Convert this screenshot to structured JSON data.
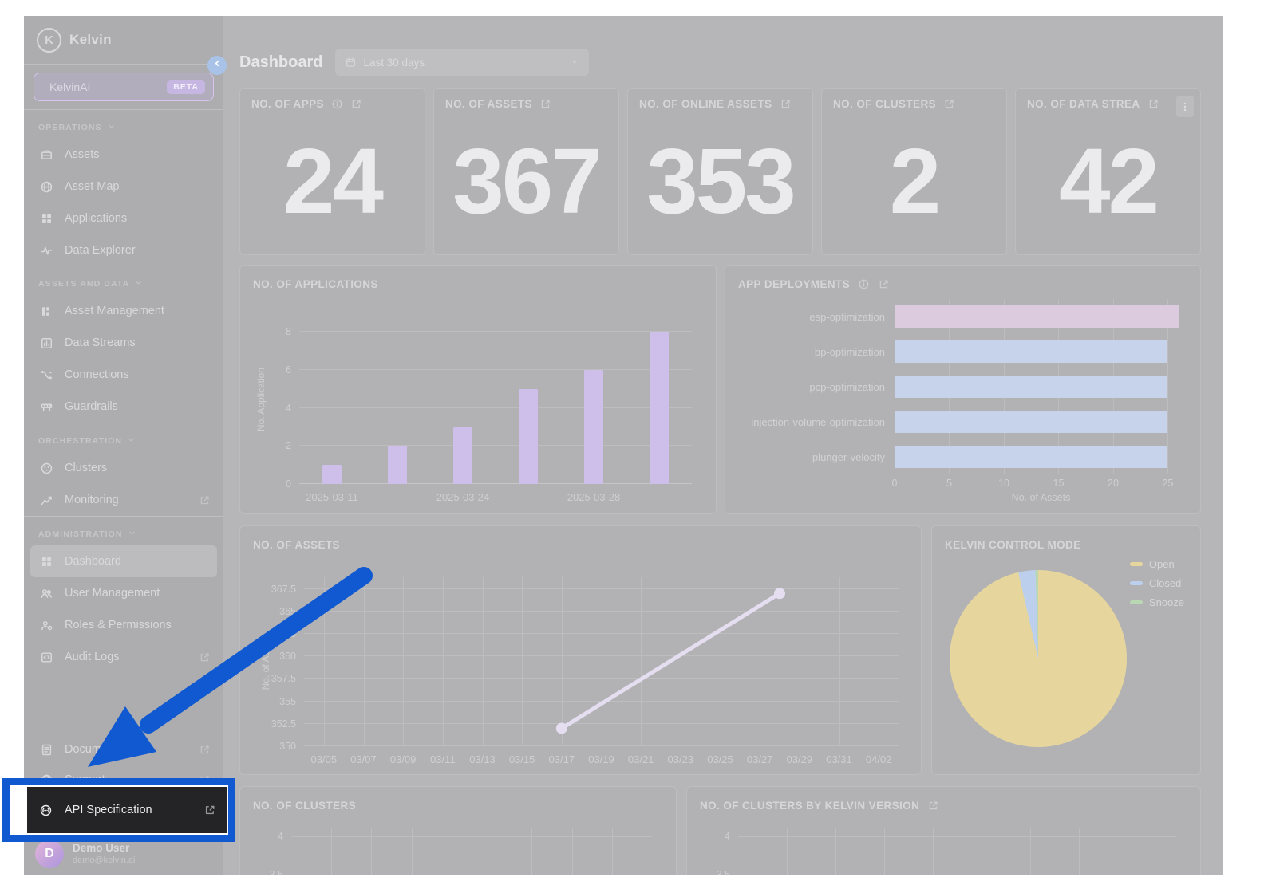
{
  "brand": "Kelvin",
  "annotation": {
    "color": "#1159d1",
    "target": "API Specification"
  },
  "sidebar": {
    "kelvin_ai": {
      "label": "KelvinAI",
      "badge": "BETA"
    },
    "sections": [
      {
        "title": "OPERATIONS",
        "items": [
          {
            "label": "Assets",
            "icon": "suitcase"
          },
          {
            "label": "Asset Map",
            "icon": "globe"
          },
          {
            "label": "Applications",
            "icon": "grid"
          },
          {
            "label": "Data Explorer",
            "icon": "pulse"
          }
        ]
      },
      {
        "title": "ASSETS AND DATA",
        "items": [
          {
            "label": "Asset Management",
            "icon": "boxes"
          },
          {
            "label": "Data Streams",
            "icon": "chart-box"
          },
          {
            "label": "Connections",
            "icon": "route"
          },
          {
            "label": "Guardrails",
            "icon": "barrier"
          }
        ]
      },
      {
        "title": "ORCHESTRATION",
        "divider_before": true,
        "items": [
          {
            "label": "Clusters",
            "icon": "cluster"
          },
          {
            "label": "Monitoring",
            "icon": "trend",
            "external": true
          }
        ]
      },
      {
        "title": "ADMINISTRATION",
        "divider_before": true,
        "items": [
          {
            "label": "Dashboard",
            "icon": "grid",
            "active": true
          },
          {
            "label": "User Management",
            "icon": "users"
          },
          {
            "label": "Roles & Permissions",
            "icon": "user-gear"
          },
          {
            "label": "Audit Logs",
            "icon": "code-box",
            "external": true
          }
        ]
      }
    ],
    "footer_items": [
      {
        "label": "Documentation",
        "icon": "document",
        "external": true
      },
      {
        "label": "Support",
        "icon": "globe",
        "external": true
      }
    ],
    "api_item": {
      "label": "API Specification",
      "icon": "api",
      "external": true
    },
    "user": {
      "name": "Demo User",
      "email": "demo@kelvin.ai",
      "initial": "D"
    }
  },
  "header": {
    "title": "Dashboard",
    "date_range": "Last 30 days"
  },
  "stat_cards": [
    {
      "title": "NO. OF APPS",
      "value": "24",
      "info": true,
      "external": true
    },
    {
      "title": "NO. OF ASSETS",
      "value": "367",
      "external": true
    },
    {
      "title": "NO. OF ONLINE ASSETS",
      "value": "353",
      "external": true
    },
    {
      "title": "NO. OF CLUSTERS",
      "value": "2",
      "external": true
    },
    {
      "title": "NO. OF DATA STREA",
      "value": "42",
      "external": true,
      "menu": true
    }
  ],
  "chart_data": [
    {
      "id": "applications_over_time",
      "type": "bar",
      "title": "NO. OF APPLICATIONS",
      "ylabel": "No. Application",
      "yticks": [
        8,
        6,
        4,
        2,
        0
      ],
      "ylim": [
        0,
        8.9
      ],
      "values": [
        1,
        2,
        3,
        5,
        6,
        8
      ],
      "x_labels": [
        {
          "text": "2025-03-11",
          "slot": 0
        },
        {
          "text": "2025-03-24",
          "slot": 2
        },
        {
          "text": "2025-03-28",
          "slot": 4
        }
      ],
      "bar_color": "#cdbfe9"
    },
    {
      "id": "app_deployments",
      "type": "hbar",
      "title": "APP DEPLOYMENTS",
      "has_info": true,
      "has_external": true,
      "xlabel": "No. of Assets",
      "xticks": [
        0,
        5,
        10,
        15,
        20,
        25
      ],
      "xlim": [
        0,
        26.5
      ],
      "categories": [
        "esp-optimization",
        "bp-optimization",
        "pcp-optimization",
        "injection-volume-optimization",
        "plunger-velocity"
      ],
      "values": [
        26,
        25,
        25,
        25,
        25
      ],
      "bar_colors": [
        "#dccbdf",
        "#c6d3eb",
        "#c6d3eb",
        "#c6d3eb",
        "#c6d3eb"
      ]
    },
    {
      "id": "assets_over_time",
      "type": "line",
      "title": "NO. OF ASSETS",
      "ylabel": "No. of Assets",
      "yticks": [
        367.5,
        365,
        362.5,
        360,
        357.5,
        355,
        352.5,
        350
      ],
      "ylim": [
        350,
        368.8
      ],
      "xticks": [
        "03/05",
        "03/07",
        "03/09",
        "03/11",
        "03/13",
        "03/15",
        "03/17",
        "03/19",
        "03/21",
        "03/23",
        "03/25",
        "03/27",
        "03/29",
        "03/31",
        "04/02"
      ],
      "points": [
        {
          "x_date": "03/17",
          "xi": 6,
          "y": 352
        },
        {
          "x_date": "03/28",
          "xi": 11.5,
          "y": 367
        }
      ],
      "line_color": "#e4def0"
    },
    {
      "id": "kelvin_control_mode",
      "type": "pie",
      "title": "KELVIN CONTROL MODE",
      "legend": [
        {
          "label": "Open",
          "color": "#e6d69e"
        },
        {
          "label": "Closed",
          "color": "#bccfed"
        },
        {
          "label": "Snooze",
          "color": "#bad7b3"
        }
      ],
      "slices": [
        {
          "label": "Open",
          "pct": 96.4
        },
        {
          "label": "Closed",
          "pct": 3.1
        },
        {
          "label": "Snooze",
          "pct": 0.5
        }
      ]
    },
    {
      "id": "clusters_over_time",
      "type": "partial",
      "title": "NO. OF CLUSTERS",
      "yticks": [
        4,
        3.5
      ]
    },
    {
      "id": "clusters_by_kelvin_version",
      "type": "partial",
      "title": "NO. OF CLUSTERS BY KELVIN VERSION",
      "has_external": true,
      "yticks": [
        4,
        3.5
      ]
    }
  ]
}
